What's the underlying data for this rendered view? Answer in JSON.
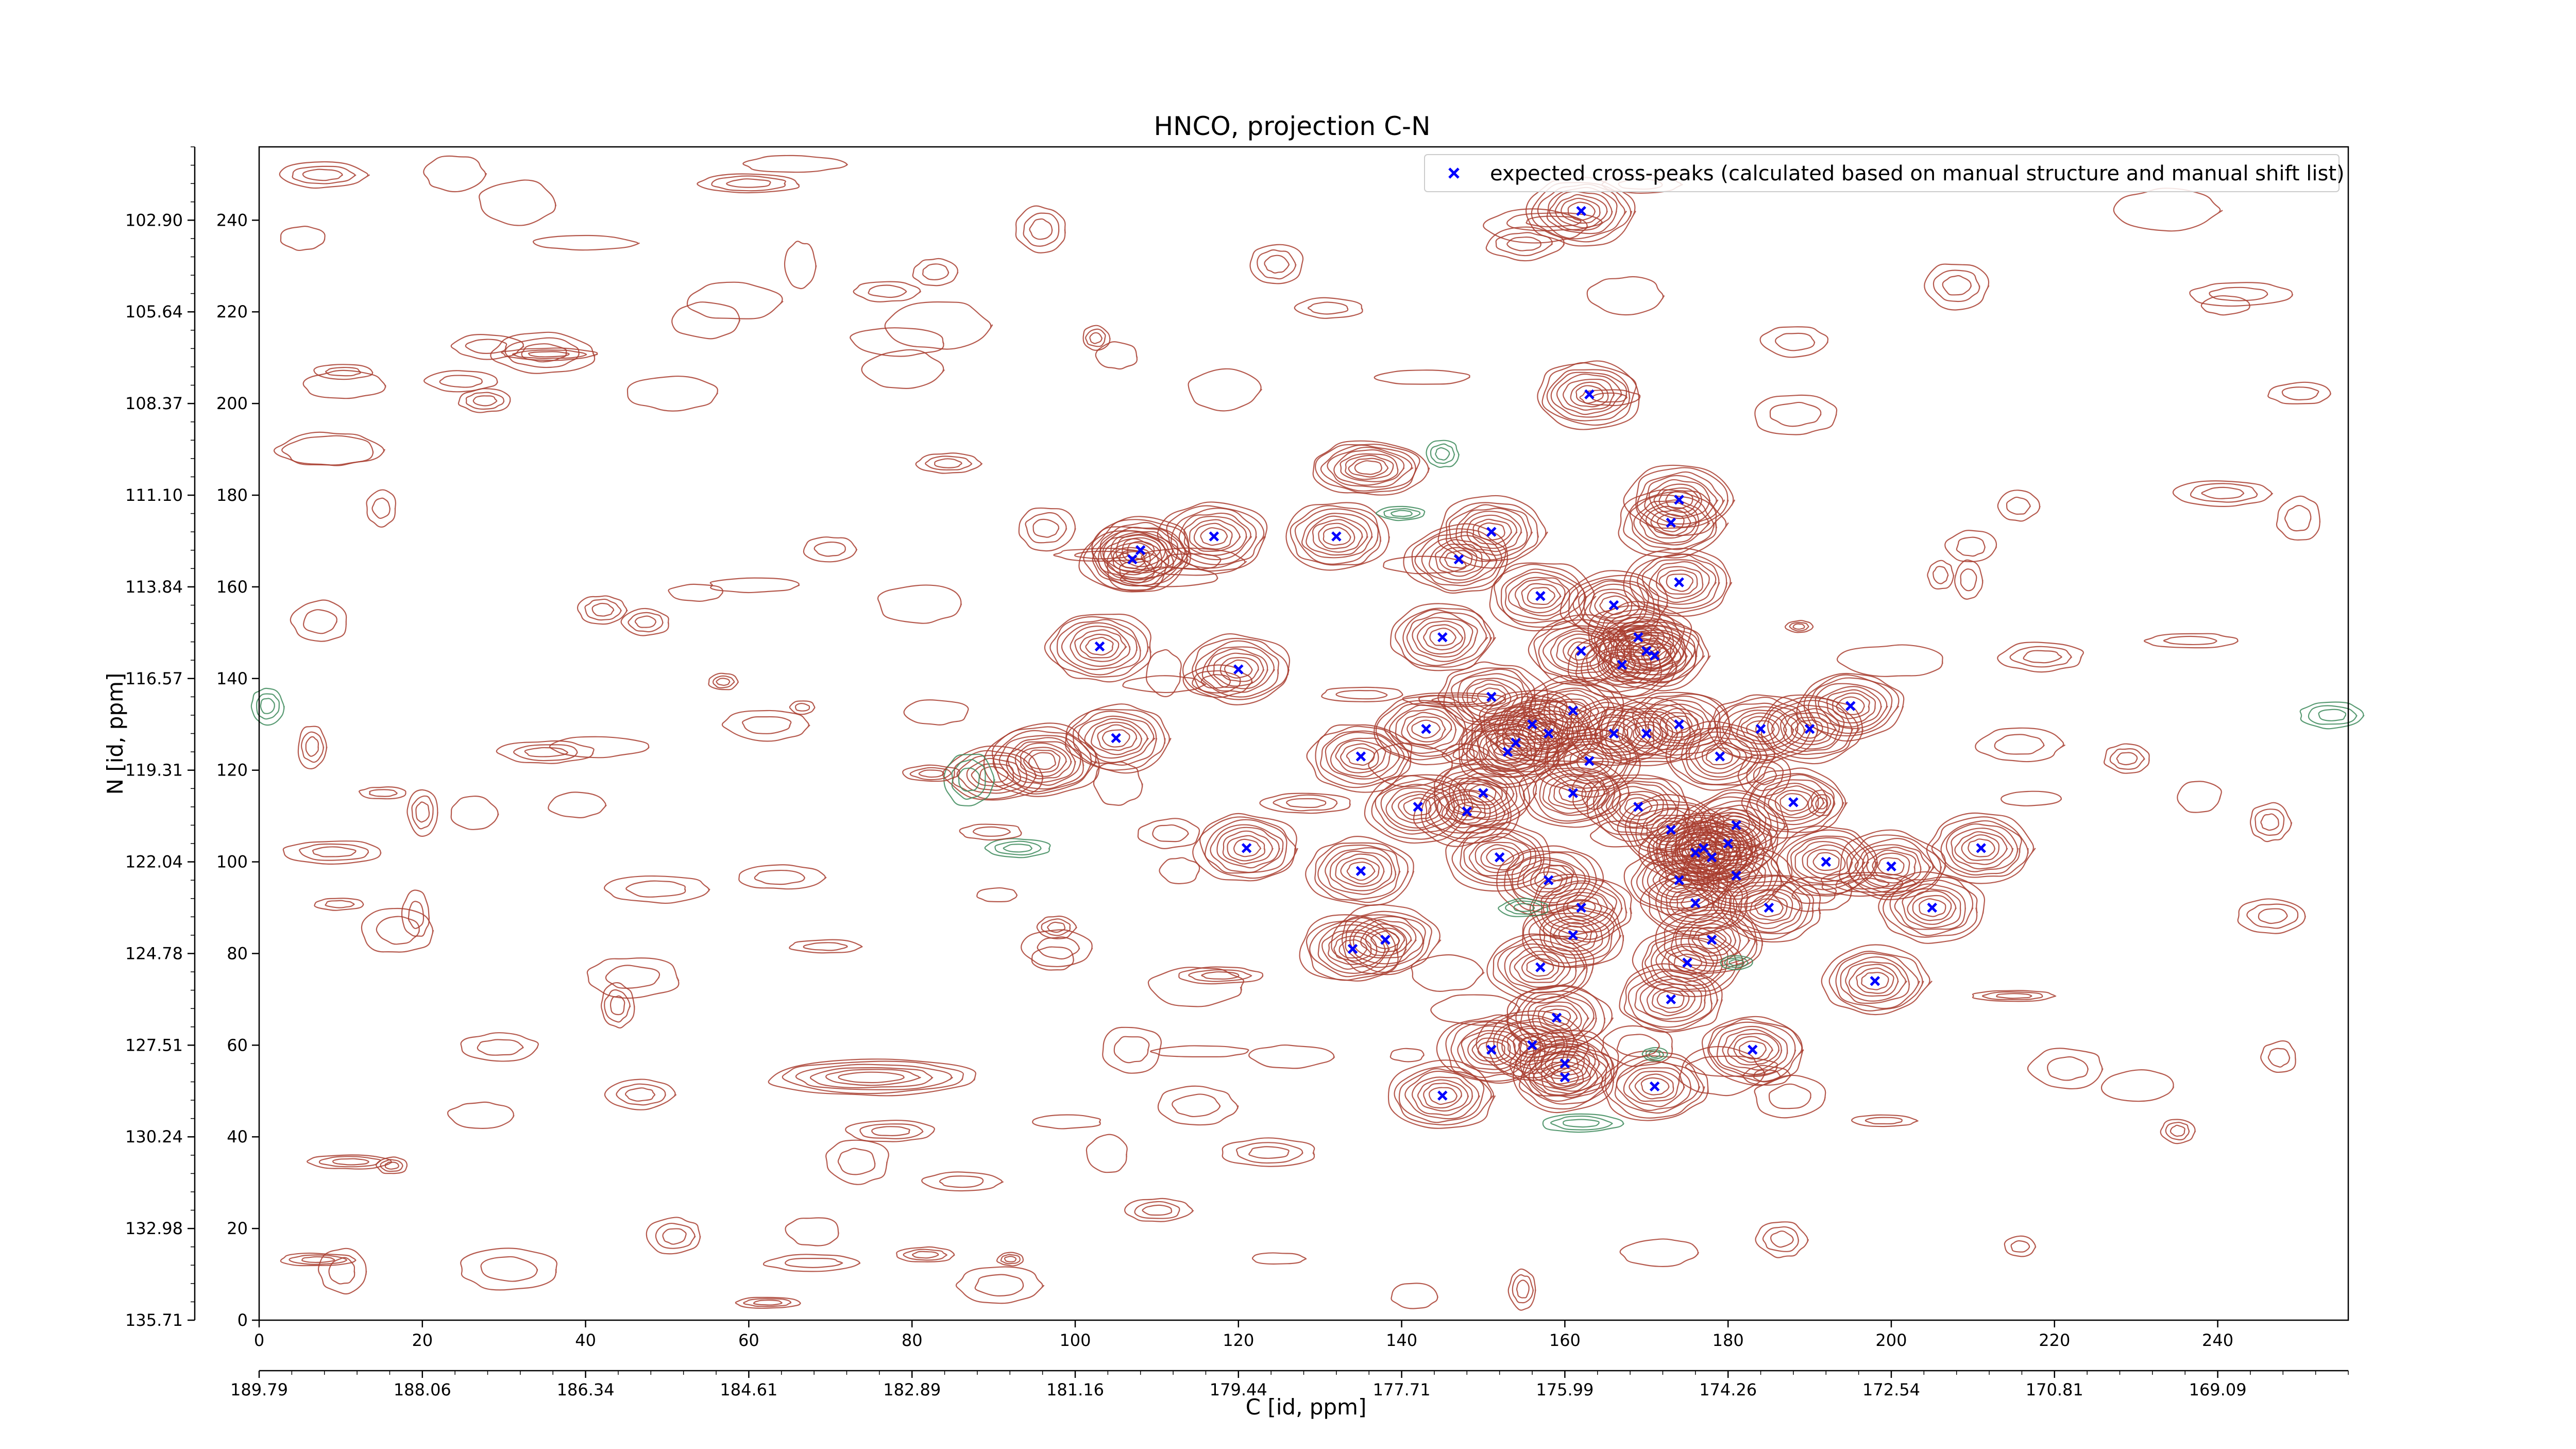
{
  "chart_data": {
    "type": "scatter",
    "title": "HNCO, projection C-N",
    "xlabel": "C [id, ppm]",
    "ylabel": "N [id, ppm]",
    "xlim": [
      0,
      256
    ],
    "ylim": [
      0,
      256
    ],
    "grid": false,
    "legend_position": "top-right",
    "x_ticks": [
      "0",
      "20",
      "40",
      "60",
      "80",
      "100",
      "120",
      "140",
      "160",
      "180",
      "200",
      "220",
      "240"
    ],
    "y_ticks": [
      "0",
      "20",
      "40",
      "60",
      "80",
      "100",
      "120",
      "140",
      "160",
      "180",
      "200",
      "220",
      "240"
    ],
    "x_ppm_ticks": [
      "189.79",
      "188.06",
      "186.34",
      "184.61",
      "182.89",
      "181.16",
      "179.44",
      "177.71",
      "175.99",
      "174.26",
      "172.54",
      "170.81",
      "169.09"
    ],
    "y_ppm_ticks": [
      "135.71",
      "132.98",
      "130.24",
      "127.51",
      "124.78",
      "122.04",
      "119.31",
      "116.57",
      "113.84",
      "111.10",
      "108.37",
      "105.64",
      "102.90"
    ],
    "contour_colors": {
      "positive": "#a83c2e",
      "negative": "#3c8a5a"
    },
    "series": [
      {
        "name": "expected cross-peaks (calculated based on manual structure and manual shift list)",
        "color": "#0000ff",
        "marker": "x",
        "points": [
          [
            162,
            242
          ],
          [
            163,
            202
          ],
          [
            174,
            179
          ],
          [
            173,
            174
          ],
          [
            117,
            171
          ],
          [
            132,
            171
          ],
          [
            108,
            168
          ],
          [
            107,
            166
          ],
          [
            147,
            166
          ],
          [
            151,
            172
          ],
          [
            174,
            161
          ],
          [
            157,
            158
          ],
          [
            166,
            156
          ],
          [
            145,
            149
          ],
          [
            162,
            146
          ],
          [
            169,
            149
          ],
          [
            167,
            143
          ],
          [
            171,
            145
          ],
          [
            170,
            146
          ],
          [
            103,
            147
          ],
          [
            120,
            142
          ],
          [
            151,
            136
          ],
          [
            195,
            134
          ],
          [
            161,
            133
          ],
          [
            143,
            129
          ],
          [
            156,
            130
          ],
          [
            166,
            128
          ],
          [
            174,
            130
          ],
          [
            170,
            128
          ],
          [
            184,
            129
          ],
          [
            158,
            128
          ],
          [
            190,
            129
          ],
          [
            154,
            126
          ],
          [
            153,
            124
          ],
          [
            163,
            122
          ],
          [
            135,
            123
          ],
          [
            179,
            123
          ],
          [
            105,
            127
          ],
          [
            150,
            115
          ],
          [
            161,
            115
          ],
          [
            142,
            112
          ],
          [
            148,
            111
          ],
          [
            169,
            112
          ],
          [
            173,
            107
          ],
          [
            181,
            108
          ],
          [
            188,
            113
          ],
          [
            121,
            103
          ],
          [
            152,
            101
          ],
          [
            177,
            103
          ],
          [
            176,
            102
          ],
          [
            180,
            104
          ],
          [
            178,
            101
          ],
          [
            174,
            96
          ],
          [
            192,
            100
          ],
          [
            200,
            99
          ],
          [
            211,
            103
          ],
          [
            135,
            98
          ],
          [
            181,
            97
          ],
          [
            158,
            96
          ],
          [
            162,
            90
          ],
          [
            176,
            91
          ],
          [
            185,
            90
          ],
          [
            205,
            90
          ],
          [
            138,
            83
          ],
          [
            134,
            81
          ],
          [
            161,
            84
          ],
          [
            178,
            83
          ],
          [
            175,
            78
          ],
          [
            157,
            77
          ],
          [
            198,
            74
          ],
          [
            173,
            70
          ],
          [
            159,
            66
          ],
          [
            156,
            60
          ],
          [
            151,
            59
          ],
          [
            183,
            59
          ],
          [
            160,
            56
          ],
          [
            160,
            53
          ],
          [
            145,
            49
          ],
          [
            171,
            51
          ]
        ]
      }
    ]
  }
}
